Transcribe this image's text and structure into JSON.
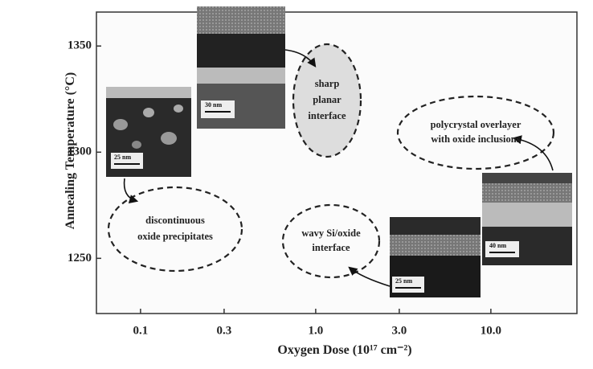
{
  "chart_data": {
    "type": "annotated-map",
    "x_label": "Oxygen Dose (10¹⁷ cm⁻²)",
    "y_label": "Annealing Temperature (°C)",
    "x_log": true,
    "xlim": [
      0.056,
      31
    ],
    "xticks": [
      0.1,
      0.3,
      {
        "value": 1,
        "label": "1.0"
      },
      {
        "value": 3,
        "label": "3.0"
      },
      {
        "value": 10,
        "label": "10.0"
      }
    ],
    "ylim": [
      1224,
      1366
    ],
    "yticks": [
      1250,
      1300,
      1350
    ],
    "annotations": [
      [
        "sharp",
        "planar",
        "interface"
      ],
      [
        "polycrystal overlayer",
        "with oxide inclusions"
      ],
      [
        "discontinuous",
        "oxide precipitates"
      ],
      [
        "wavy Si/oxide",
        "interface"
      ]
    ],
    "scale_bars": [
      "25 nm",
      "30 nm",
      "25 nm",
      "40 nm"
    ]
  }
}
